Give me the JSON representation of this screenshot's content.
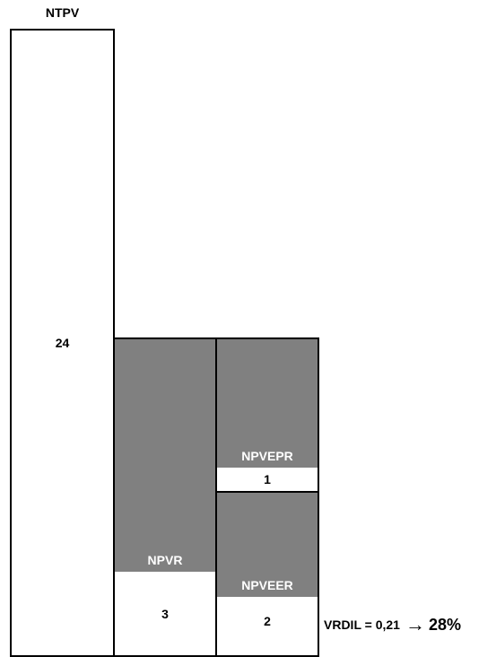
{
  "ntpv": {
    "label": "NTPV",
    "value": "24"
  },
  "npvr": {
    "label": "NPVR",
    "value": "3"
  },
  "npvepr": {
    "label": "NPVEPR",
    "value": "1"
  },
  "npveer": {
    "label": "NPVEER",
    "value": "2"
  },
  "ratio": {
    "label": "VRDIL = 0,21",
    "arrow": "→",
    "percent": "28%"
  },
  "colors": {
    "gray_fill": "#808080",
    "border": "#000000",
    "background": "#ffffff"
  }
}
